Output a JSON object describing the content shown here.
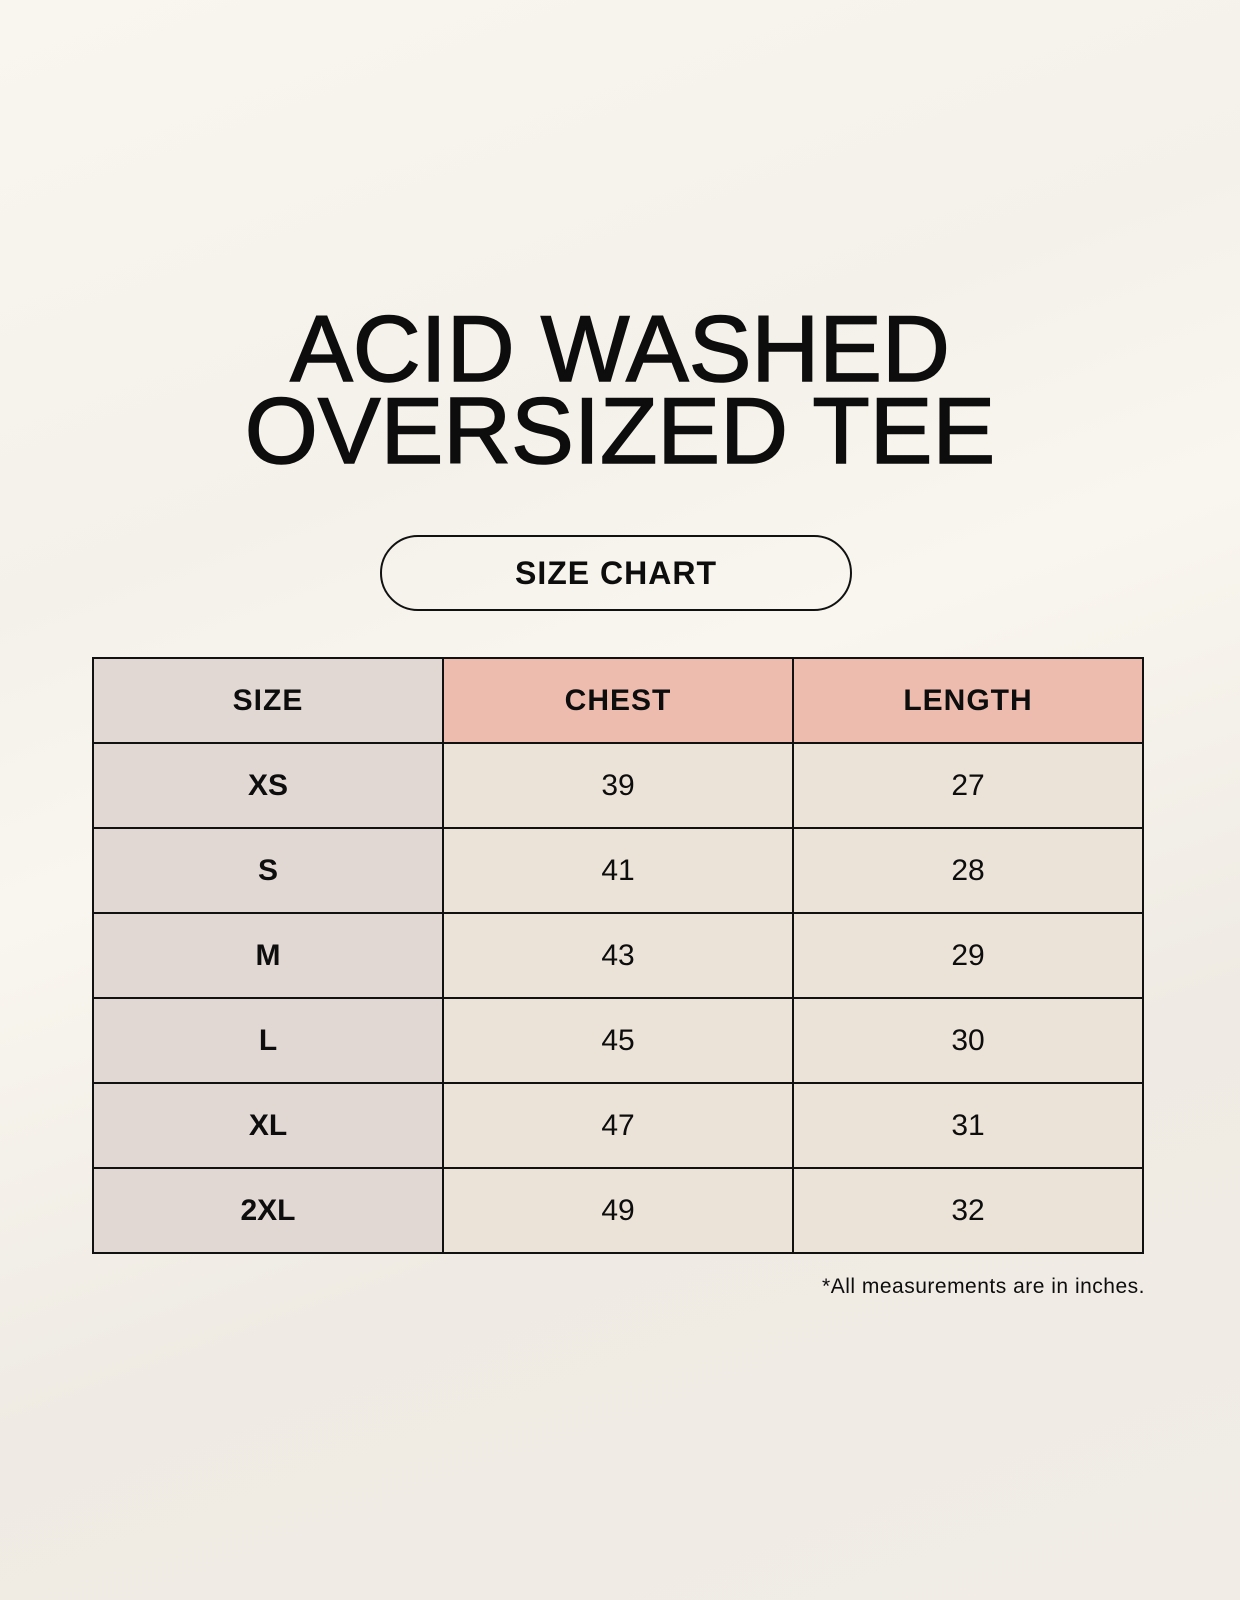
{
  "title_lines": [
    "ACID WASHED",
    "OVERSIZED TEE"
  ],
  "subtitle": "SIZE CHART",
  "table": {
    "headers": [
      "SIZE",
      "CHEST",
      "LENGTH"
    ],
    "rows": [
      [
        "XS",
        "39",
        "27"
      ],
      [
        "S",
        "41",
        "28"
      ],
      [
        "M",
        "43",
        "29"
      ],
      [
        "L",
        "45",
        "30"
      ],
      [
        "XL",
        "47",
        "31"
      ],
      [
        "2XL",
        "49",
        "32"
      ]
    ]
  },
  "footnote": "*All measurements are in inches.",
  "colors": {
    "size_column": "#e1d8d3",
    "header_accent": "#edbcae",
    "value_cells": "#ebe2d8"
  }
}
